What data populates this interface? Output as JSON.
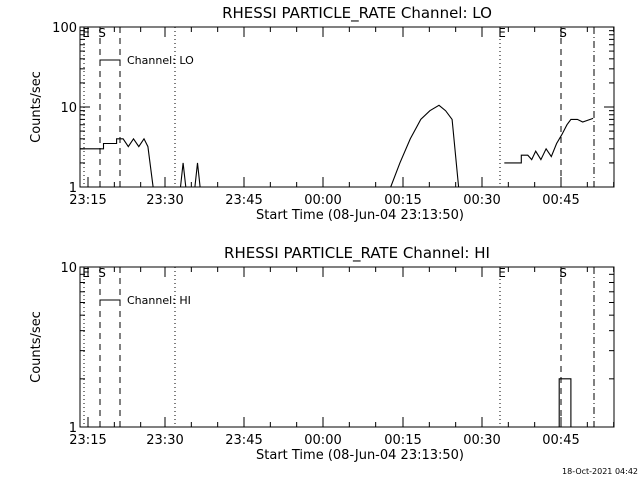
{
  "footer": {
    "timestamp": "18-Oct-2021 04:42"
  },
  "chart_data": [
    {
      "type": "line",
      "title": "RHESSI PARTICLE_RATE Channel: LO",
      "xlabel": "Start Time (08-Jun-04 23:13:50)",
      "ylabel": "Counts/sec",
      "yscale": "log",
      "xlim_minutes_from_start": [
        -1.3,
        39.6
      ],
      "ylim": [
        1,
        100
      ],
      "x_tick_labels": [
        "23:15",
        "23:30",
        "23:45",
        "00:00",
        "00:15",
        "00:30",
        "00:45"
      ],
      "y_tick_labels": [
        "1",
        "10",
        "100"
      ],
      "legend": "Channel: LO",
      "event_lines": [
        {
          "t_min": -0.1,
          "style": "dotted",
          "label": "E"
        },
        {
          "t_min": 2.1,
          "style": "dashed",
          "label": "S"
        },
        {
          "t_min": 3.8,
          "style": "dashed",
          "label": ""
        },
        {
          "t_min": 8.2,
          "style": "dotted",
          "label": ""
        },
        {
          "t_min": 29.5,
          "style": "dotted",
          "label": "E"
        },
        {
          "t_min": 34.0,
          "style": "dashed",
          "label": "S"
        },
        {
          "t_min": 36.3,
          "style": "dashdot",
          "label": ""
        }
      ],
      "series": [
        {
          "x": [
            -1.3,
            0.5,
            0.5,
            1.5,
            1.5,
            2.0,
            2.4,
            2.8,
            3.2,
            3.6,
            3.9,
            4.3
          ],
          "y": [
            3,
            3,
            3.5,
            3.5,
            4,
            4,
            3.2,
            4,
            3.2,
            4,
            3.2,
            1
          ]
        },
        {
          "x": [
            6.4,
            6.6,
            6.8
          ],
          "y": [
            1,
            2,
            1
          ]
        },
        {
          "x": [
            7.5,
            7.7,
            7.9
          ],
          "y": [
            1,
            2,
            1
          ]
        },
        {
          "x": [
            22.5,
            23.2,
            24.0,
            24.8,
            25.5,
            26.2,
            26.7,
            27.2,
            27.7
          ],
          "y": [
            1,
            2,
            4,
            7,
            9,
            10.5,
            9,
            7,
            1
          ]
        },
        {
          "x": [
            31.2,
            32.5,
            32.5,
            33.0,
            33.3,
            33.6,
            34.0,
            34.4,
            34.8,
            35.2,
            35.6,
            36.0,
            36.3,
            36.8,
            37.2,
            38.0
          ],
          "y": [
            2,
            2,
            2.5,
            2.5,
            2.2,
            2.8,
            2.2,
            3,
            2.4,
            3.5,
            4.5,
            6,
            7,
            7,
            6.5,
            7.2
          ]
        }
      ]
    },
    {
      "type": "line",
      "title": "RHESSI PARTICLE_RATE Channel: HI",
      "xlabel": "Start Time (08-Jun-04 23:13:50)",
      "ylabel": "Counts/sec",
      "yscale": "log",
      "xlim_minutes_from_start": [
        -1.3,
        39.6
      ],
      "ylim": [
        1,
        10
      ],
      "x_tick_labels": [
        "23:15",
        "23:30",
        "23:45",
        "00:00",
        "00:15",
        "00:30",
        "00:45"
      ],
      "y_tick_labels": [
        "1",
        "10"
      ],
      "legend": "Channel: HI",
      "event_lines": [
        {
          "t_min": -0.1,
          "style": "dotted",
          "label": "E"
        },
        {
          "t_min": 2.1,
          "style": "dashed",
          "label": "S"
        },
        {
          "t_min": 3.8,
          "style": "dashed",
          "label": ""
        },
        {
          "t_min": 8.2,
          "style": "dotted",
          "label": ""
        },
        {
          "t_min": 29.5,
          "style": "dotted",
          "label": "E"
        },
        {
          "t_min": 34.0,
          "style": "dashed",
          "label": "S"
        },
        {
          "t_min": 36.3,
          "style": "dashdot",
          "label": ""
        }
      ],
      "series": [
        {
          "x": [
            34.8,
            35.4,
            35.4,
            36.3,
            36.3
          ],
          "y": [
            1,
            1,
            2,
            2,
            1
          ]
        }
      ]
    }
  ]
}
